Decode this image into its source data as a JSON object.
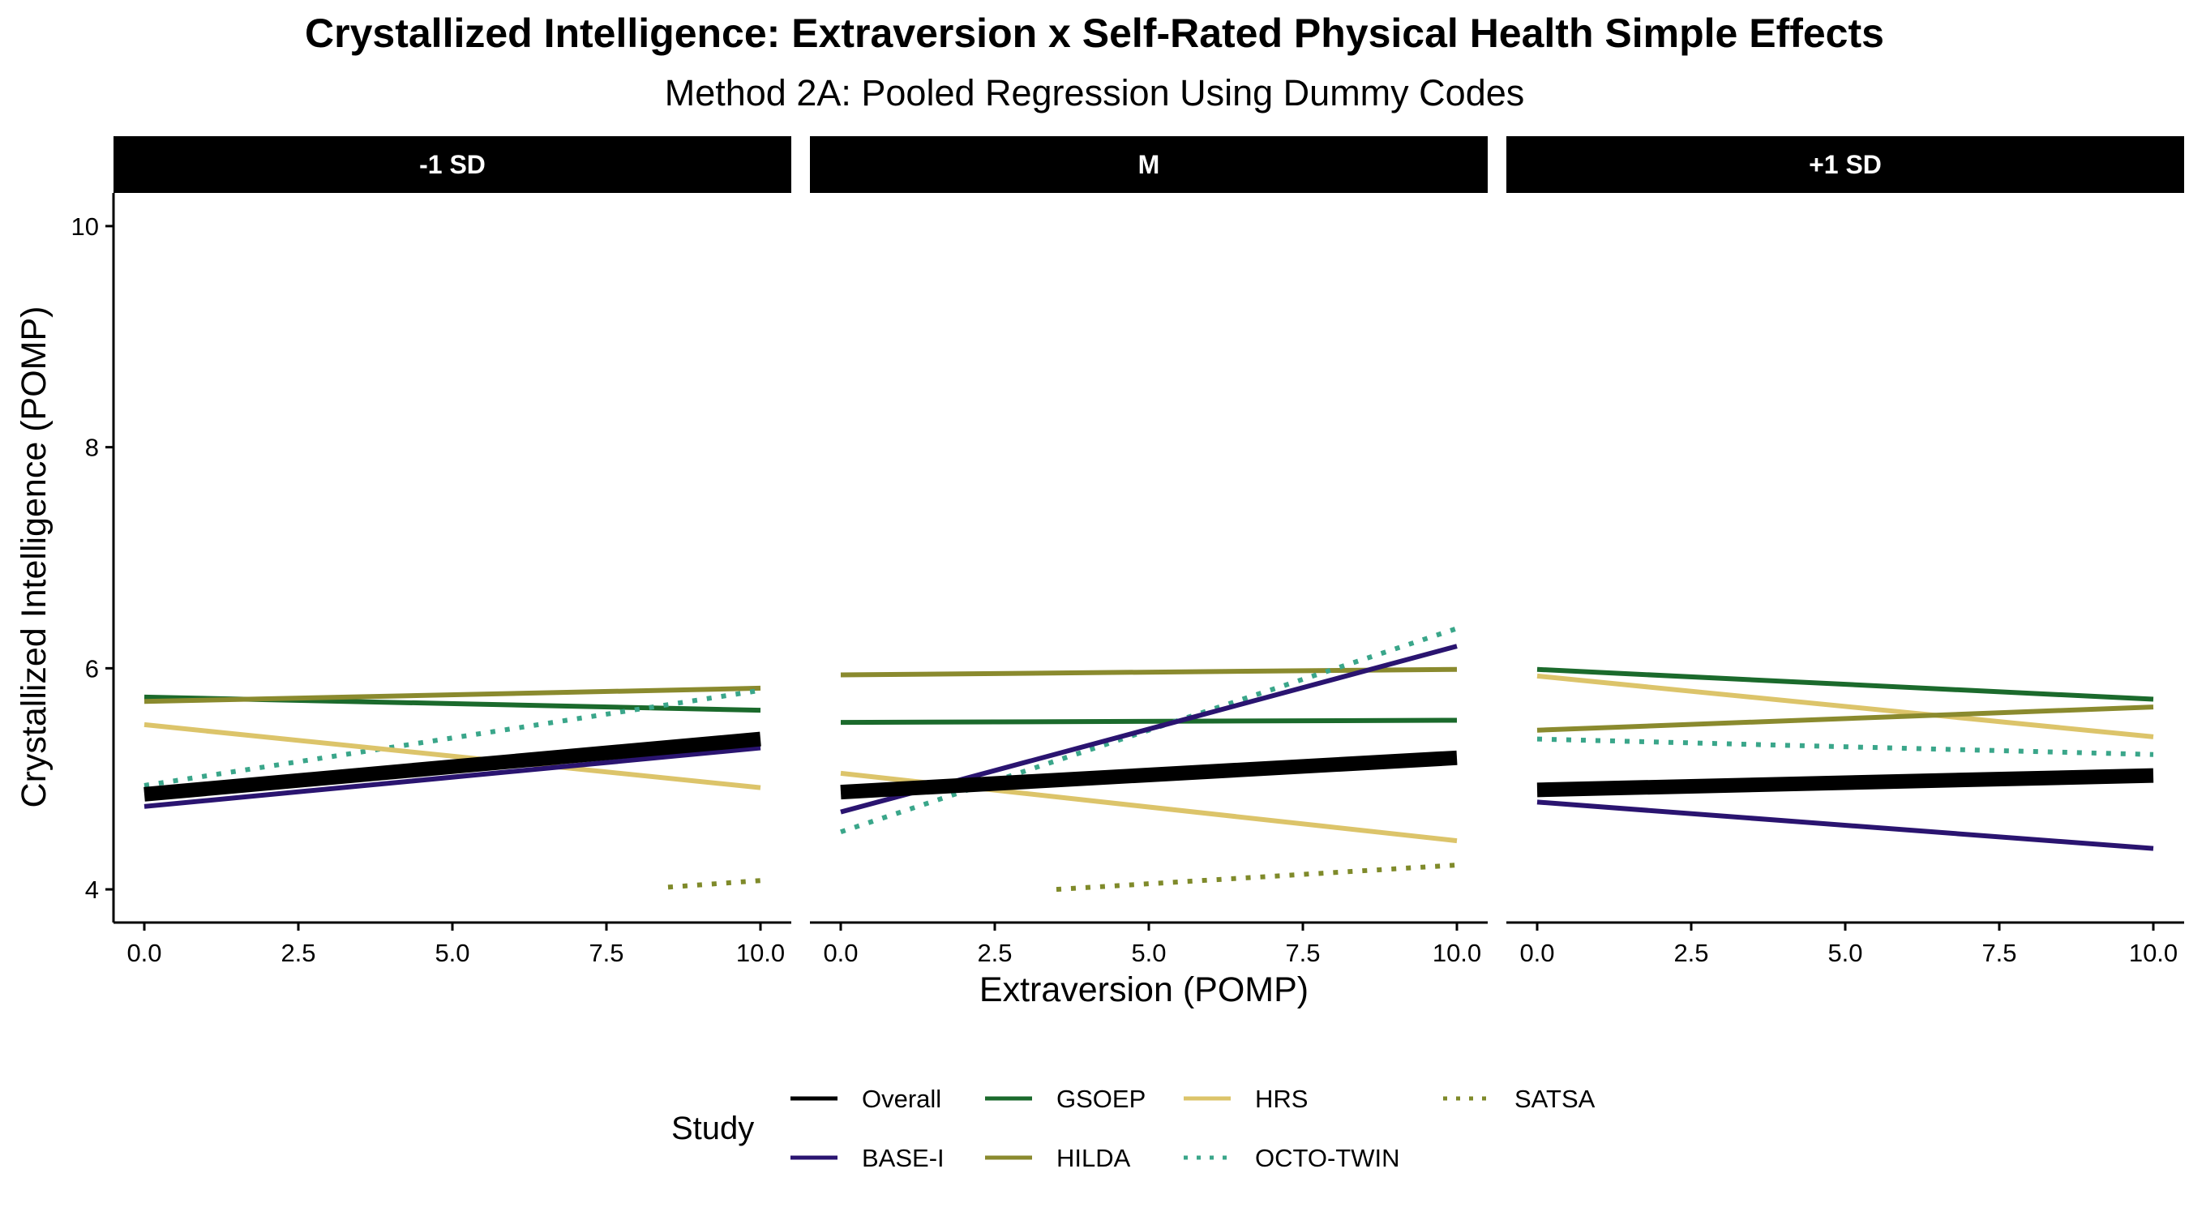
{
  "chart_data": {
    "type": "line",
    "title": "Crystallized Intelligence: Extraversion x Self-Rated Physical Health Simple Effects",
    "subtitle": "Method 2A: Pooled Regression Using Dummy Codes",
    "xlabel": "Extraversion (POMP)",
    "ylabel": "Crystallized Intelligence (POMP)",
    "xlim": [
      -0.5,
      10.5
    ],
    "ylim": [
      3.7,
      10.3
    ],
    "x_ticks": [
      "0.0",
      "2.5",
      "5.0",
      "7.5",
      "10.0"
    ],
    "y_ticks": [
      "4",
      "6",
      "8",
      "10"
    ],
    "grid": false,
    "legend": {
      "title": "Study",
      "position": "bottom",
      "entries": [
        {
          "name": "Overall",
          "color": "#000000",
          "linetype": "solid"
        },
        {
          "name": "BASE-I",
          "color": "#2a1470",
          "linetype": "solid"
        },
        {
          "name": "GSOEP",
          "color": "#1b6a2c",
          "linetype": "solid"
        },
        {
          "name": "HILDA",
          "color": "#8a8a2e",
          "linetype": "solid"
        },
        {
          "name": "HRS",
          "color": "#dcc46a",
          "linetype": "solid"
        },
        {
          "name": "OCTO-TWIN",
          "color": "#3aa68a",
          "linetype": "dotted"
        },
        {
          "name": "SATSA",
          "color": "#7f8a2a",
          "linetype": "dotted"
        }
      ]
    },
    "panels": [
      {
        "label": "-1 SD",
        "series": [
          {
            "name": "GSOEP",
            "x": [
              0,
              10
            ],
            "y": [
              5.74,
              5.62
            ]
          },
          {
            "name": "HILDA",
            "x": [
              0,
              10
            ],
            "y": [
              5.7,
              5.82
            ]
          },
          {
            "name": "OCTO-TWIN",
            "x": [
              0,
              10
            ],
            "y": [
              4.94,
              5.8
            ]
          },
          {
            "name": "HRS",
            "x": [
              0,
              10
            ],
            "y": [
              5.49,
              4.92
            ]
          },
          {
            "name": "BASE-I",
            "x": [
              0,
              10
            ],
            "y": [
              4.75,
              5.28
            ]
          },
          {
            "name": "SATSA",
            "x": [
              8.5,
              10
            ],
            "y": [
              4.02,
              4.08
            ]
          },
          {
            "name": "Overall",
            "x": [
              0,
              10
            ],
            "y": [
              4.86,
              5.36
            ]
          }
        ]
      },
      {
        "label": "M",
        "series": [
          {
            "name": "HILDA",
            "x": [
              0,
              10
            ],
            "y": [
              5.94,
              5.99
            ]
          },
          {
            "name": "GSOEP",
            "x": [
              0,
              10
            ],
            "y": [
              5.51,
              5.53
            ]
          },
          {
            "name": "HRS",
            "x": [
              0,
              10
            ],
            "y": [
              5.05,
              4.44
            ]
          },
          {
            "name": "OCTO-TWIN",
            "x": [
              0,
              10
            ],
            "y": [
              4.52,
              6.36
            ]
          },
          {
            "name": "BASE-I",
            "x": [
              0,
              10
            ],
            "y": [
              4.7,
              6.2
            ]
          },
          {
            "name": "SATSA",
            "x": [
              3.5,
              10
            ],
            "y": [
              4.0,
              4.22
            ]
          },
          {
            "name": "Overall",
            "x": [
              0,
              10
            ],
            "y": [
              4.88,
              5.19
            ]
          }
        ]
      },
      {
        "label": "+1 SD",
        "series": [
          {
            "name": "GSOEP",
            "x": [
              0,
              10
            ],
            "y": [
              5.99,
              5.72
            ]
          },
          {
            "name": "HRS",
            "x": [
              0,
              10
            ],
            "y": [
              5.93,
              5.38
            ]
          },
          {
            "name": "HILDA",
            "x": [
              0,
              10
            ],
            "y": [
              5.44,
              5.65
            ]
          },
          {
            "name": "OCTO-TWIN",
            "x": [
              0,
              10
            ],
            "y": [
              5.36,
              5.22
            ]
          },
          {
            "name": "BASE-I",
            "x": [
              0,
              10
            ],
            "y": [
              4.79,
              4.37
            ]
          },
          {
            "name": "Overall",
            "x": [
              0,
              10
            ],
            "y": [
              4.9,
              5.03
            ]
          }
        ]
      }
    ]
  }
}
